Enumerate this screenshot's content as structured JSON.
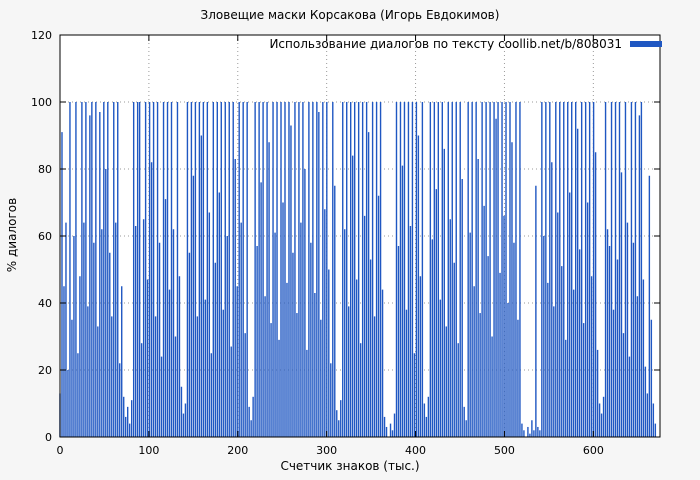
{
  "page": {
    "background": "#f6f6f6",
    "plot_background": "#ffffff",
    "grid_color": "#9a9a9a",
    "border_color": "#000000"
  },
  "chart_data": {
    "type": "bar",
    "title": "Зловещие маски Корсакова (Игорь Евдокимов)",
    "legend": "Использование диалогов по тексту coollib.net/b/808031",
    "xlabel": "Счетчик знаков (тыс.)",
    "ylabel": "% диалогов",
    "xlim": [
      0,
      675
    ],
    "ylim": [
      0,
      120
    ],
    "x_ticks": [
      0,
      100,
      200,
      300,
      400,
      500,
      600
    ],
    "y_ticks": [
      0,
      20,
      40,
      60,
      80,
      100,
      120
    ],
    "grid": true,
    "legend_position": "top-right",
    "bar_color": "#1f57c2",
    "x_start": 0,
    "x_step": 2.24,
    "values": [
      13,
      91,
      45,
      64,
      20,
      100,
      35,
      60,
      100,
      25,
      48,
      100,
      64,
      100,
      39,
      96,
      100,
      58,
      100,
      33,
      97,
      62,
      100,
      80,
      100,
      55,
      36,
      100,
      64,
      100,
      22,
      45,
      12,
      6,
      9,
      4,
      11,
      100,
      63,
      100,
      100,
      28,
      65,
      100,
      47,
      100,
      82,
      100,
      36,
      100,
      58,
      24,
      100,
      71,
      100,
      44,
      100,
      62,
      30,
      100,
      48,
      15,
      7,
      10,
      100,
      55,
      100,
      78,
      100,
      36,
      100,
      90,
      100,
      41,
      100,
      67,
      25,
      100,
      52,
      100,
      73,
      100,
      38,
      100,
      60,
      100,
      27,
      100,
      83,
      45,
      100,
      64,
      100,
      31,
      100,
      9,
      5,
      12,
      100,
      57,
      100,
      76,
      100,
      42,
      100,
      88,
      34,
      100,
      61,
      100,
      29,
      100,
      70,
      100,
      46,
      100,
      93,
      55,
      100,
      37,
      100,
      64,
      100,
      80,
      26,
      100,
      58,
      100,
      43,
      100,
      97,
      35,
      100,
      68,
      100,
      50,
      22,
      100,
      75,
      8,
      5,
      11,
      100,
      62,
      100,
      39,
      100,
      84,
      100,
      47,
      100,
      28,
      100,
      66,
      100,
      91,
      53,
      100,
      36,
      100,
      72,
      100,
      44,
      6,
      3,
      0,
      4,
      2,
      7,
      100,
      57,
      100,
      81,
      100,
      38,
      100,
      63,
      100,
      25,
      100,
      90,
      48,
      100,
      10,
      6,
      12,
      100,
      59,
      100,
      74,
      100,
      41,
      100,
      86,
      33,
      100,
      65,
      100,
      52,
      100,
      28,
      100,
      77,
      9,
      5,
      100,
      61,
      100,
      45,
      100,
      83,
      37,
      100,
      69,
      100,
      54,
      100,
      30,
      100,
      95,
      100,
      49,
      100,
      66,
      100,
      40,
      100,
      88,
      58,
      100,
      35,
      100,
      4,
      2,
      0,
      3,
      1,
      5,
      2,
      75,
      3,
      2,
      100,
      60,
      100,
      46,
      100,
      82,
      39,
      100,
      67,
      100,
      51,
      100,
      29,
      100,
      73,
      100,
      44,
      100,
      92,
      56,
      100,
      34,
      100,
      70,
      100,
      48,
      100,
      85,
      26,
      10,
      7,
      12,
      100,
      62,
      57,
      100,
      38,
      100,
      53,
      100,
      79,
      31,
      100,
      64,
      24,
      100,
      58,
      100,
      42,
      96,
      100,
      47,
      21,
      13,
      78,
      35,
      10,
      4
    ]
  }
}
